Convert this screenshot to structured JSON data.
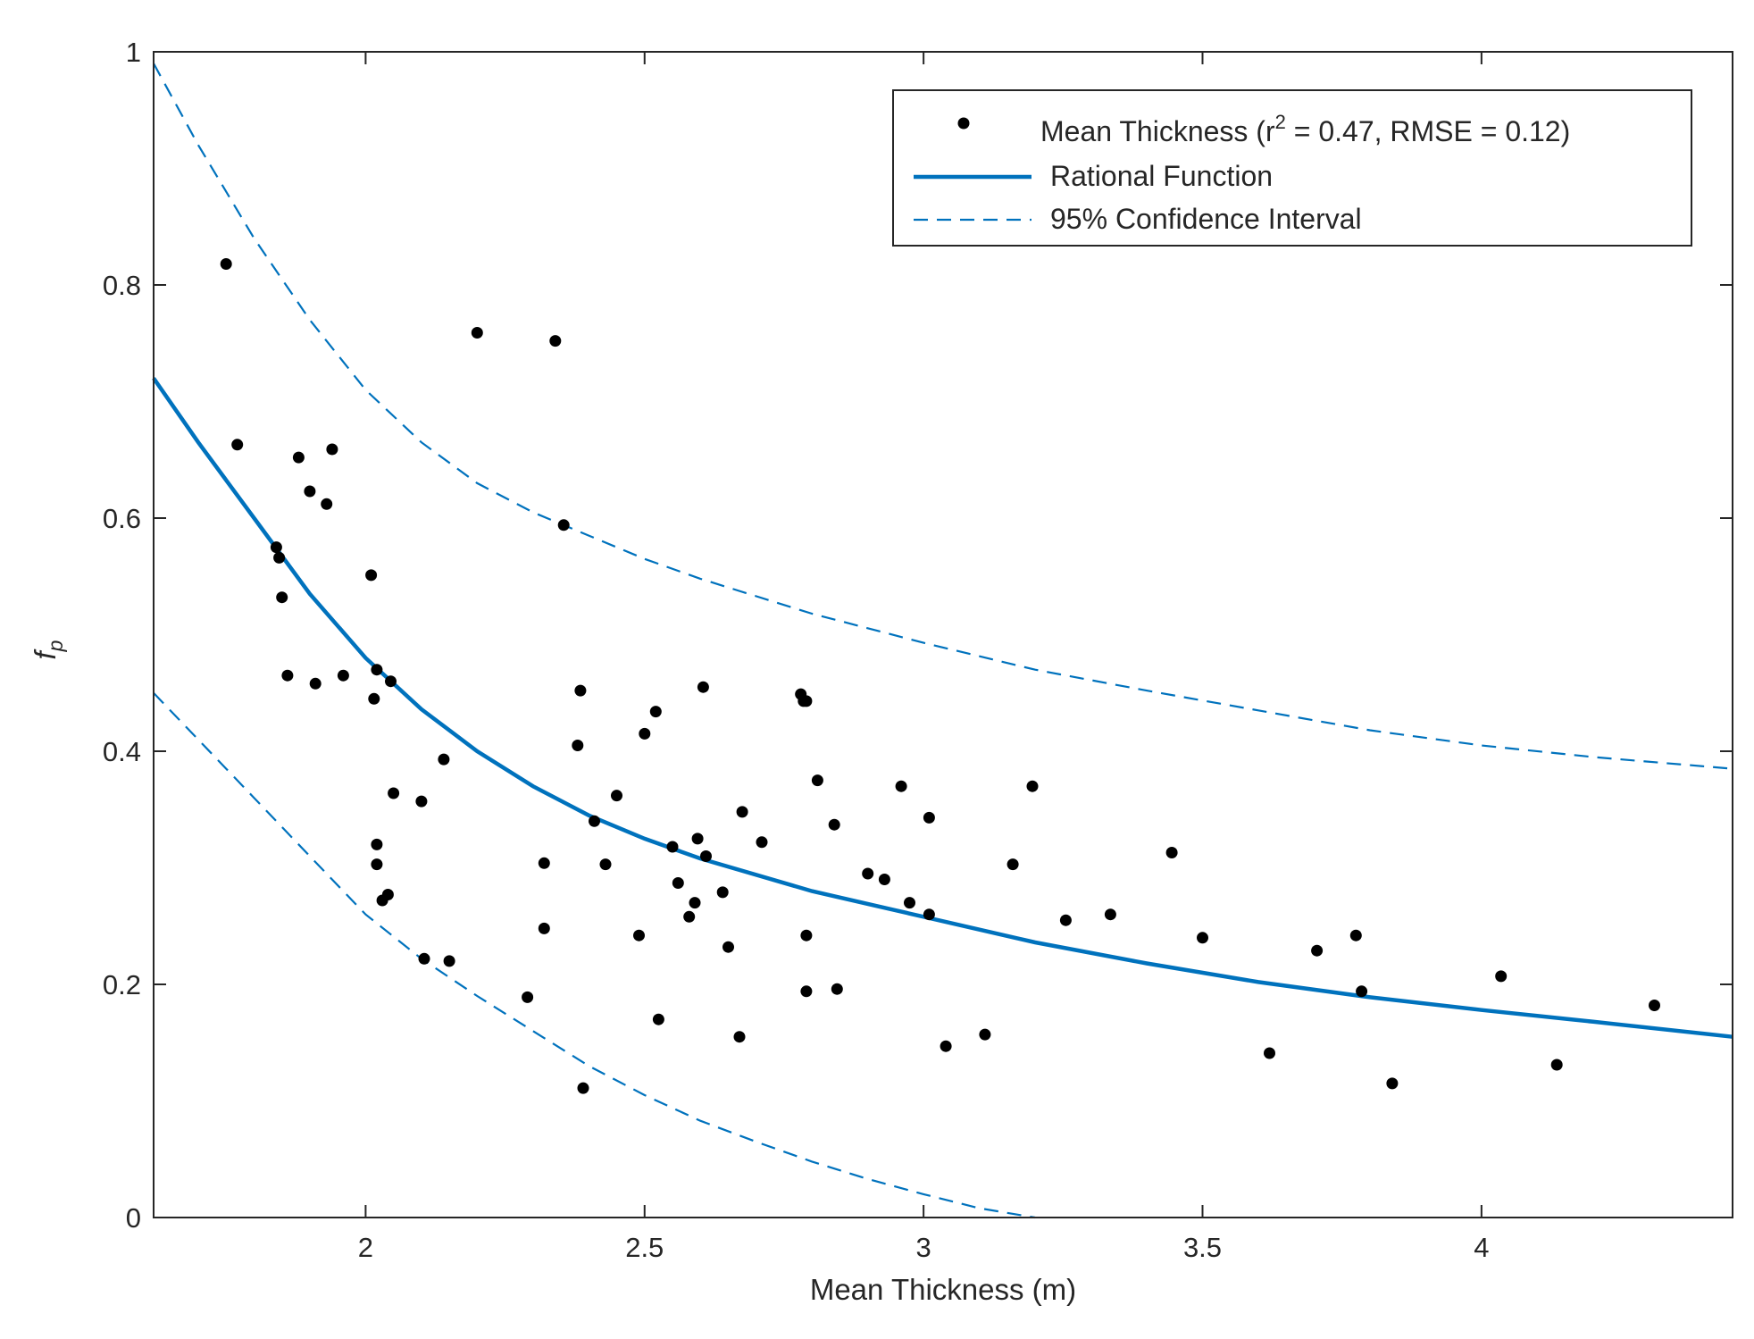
{
  "chart_data": {
    "type": "scatter",
    "xlabel": "Mean Thickness (m)",
    "ylabel": "f",
    "ylabel_subscript": "p",
    "xlim": [
      1.62,
      4.45
    ],
    "ylim": [
      0,
      1
    ],
    "xticks": [
      2,
      2.5,
      3,
      3.5,
      4
    ],
    "yticks": [
      0,
      0.2,
      0.4,
      0.6,
      0.8,
      1
    ],
    "xtick_labels": [
      "2",
      "2.5",
      "3",
      "3.5",
      "4"
    ],
    "ytick_labels": [
      "0",
      "0.2",
      "0.4",
      "0.6",
      "0.8",
      "1"
    ],
    "grid": false,
    "legend_position": "top-right",
    "legend": {
      "scatter_label_prefix": "Mean Thickness (r",
      "scatter_label_sup": "2",
      "scatter_label_suffix": " = 0.47, RMSE = 0.12)",
      "fit_label": "Rational Function",
      "ci_label": "95% Confidence Interval"
    },
    "colors": {
      "points": "#000000",
      "fit": "#0072bd",
      "ci": "#0072bd",
      "axes": "#262626"
    },
    "fit_curve": {
      "x": [
        1.62,
        1.7,
        1.8,
        1.9,
        2.0,
        2.1,
        2.2,
        2.3,
        2.4,
        2.5,
        2.6,
        2.8,
        3.0,
        3.2,
        3.4,
        3.6,
        3.8,
        4.0,
        4.2,
        4.45
      ],
      "y": [
        0.72,
        0.665,
        0.6,
        0.535,
        0.48,
        0.436,
        0.4,
        0.37,
        0.345,
        0.325,
        0.308,
        0.28,
        0.258,
        0.236,
        0.218,
        0.202,
        0.189,
        0.178,
        0.168,
        0.155
      ]
    },
    "ci_upper": {
      "x": [
        1.62,
        1.7,
        1.8,
        1.9,
        2.0,
        2.1,
        2.2,
        2.3,
        2.4,
        2.5,
        2.6,
        2.8,
        3.0,
        3.2,
        3.4,
        3.6,
        3.8,
        4.0,
        4.2,
        4.45
      ],
      "y": [
        0.99,
        0.92,
        0.84,
        0.77,
        0.71,
        0.665,
        0.63,
        0.605,
        0.585,
        0.565,
        0.548,
        0.518,
        0.493,
        0.47,
        0.452,
        0.435,
        0.418,
        0.405,
        0.395,
        0.385
      ]
    },
    "ci_lower": {
      "x": [
        1.62,
        1.7,
        1.8,
        1.9,
        2.0,
        2.1,
        2.2,
        2.3,
        2.4,
        2.5,
        2.6,
        2.7,
        2.8,
        2.9,
        3.0,
        3.1,
        3.2
      ],
      "y": [
        0.45,
        0.41,
        0.36,
        0.31,
        0.26,
        0.222,
        0.19,
        0.16,
        0.13,
        0.105,
        0.083,
        0.065,
        0.048,
        0.033,
        0.02,
        0.008,
        0.0
      ]
    },
    "points": {
      "x": [
        1.75,
        1.77,
        1.84,
        1.845,
        1.85,
        1.86,
        1.88,
        1.9,
        1.91,
        1.93,
        1.94,
        1.96,
        2.01,
        2.015,
        2.02,
        2.02,
        2.02,
        2.03,
        2.04,
        2.045,
        2.05,
        2.1,
        2.105,
        2.14,
        2.15,
        2.2,
        2.29,
        2.32,
        2.32,
        2.34,
        2.355,
        2.38,
        2.385,
        2.39,
        2.41,
        2.43,
        2.45,
        2.49,
        2.5,
        2.52,
        2.525,
        2.55,
        2.56,
        2.58,
        2.59,
        2.595,
        2.605,
        2.61,
        2.64,
        2.65,
        2.67,
        2.675,
        2.71,
        2.78,
        2.785,
        2.79,
        2.79,
        2.79,
        2.81,
        2.84,
        2.845,
        2.9,
        2.93,
        2.96,
        2.975,
        3.01,
        3.01,
        3.04,
        3.11,
        3.16,
        3.195,
        3.255,
        3.335,
        3.445,
        3.5,
        3.62,
        3.705,
        3.775,
        3.785,
        3.84,
        4.035,
        4.135,
        4.31
      ],
      "y": [
        0.818,
        0.663,
        0.575,
        0.566,
        0.532,
        0.465,
        0.652,
        0.623,
        0.458,
        0.612,
        0.659,
        0.465,
        0.551,
        0.445,
        0.303,
        0.32,
        0.47,
        0.272,
        0.277,
        0.46,
        0.364,
        0.357,
        0.222,
        0.393,
        0.22,
        0.759,
        0.189,
        0.304,
        0.248,
        0.752,
        0.594,
        0.405,
        0.452,
        0.111,
        0.34,
        0.303,
        0.362,
        0.242,
        0.415,
        0.434,
        0.17,
        0.318,
        0.287,
        0.258,
        0.27,
        0.325,
        0.455,
        0.31,
        0.279,
        0.232,
        0.155,
        0.348,
        0.322,
        0.449,
        0.443,
        0.242,
        0.194,
        0.443,
        0.375,
        0.337,
        0.196,
        0.295,
        0.29,
        0.37,
        0.27,
        0.343,
        0.26,
        0.147,
        0.157,
        0.303,
        0.37,
        0.255,
        0.26,
        0.313,
        0.24,
        0.141,
        0.229,
        0.242,
        0.194,
        0.115,
        0.207,
        0.131,
        0.182
      ]
    }
  }
}
